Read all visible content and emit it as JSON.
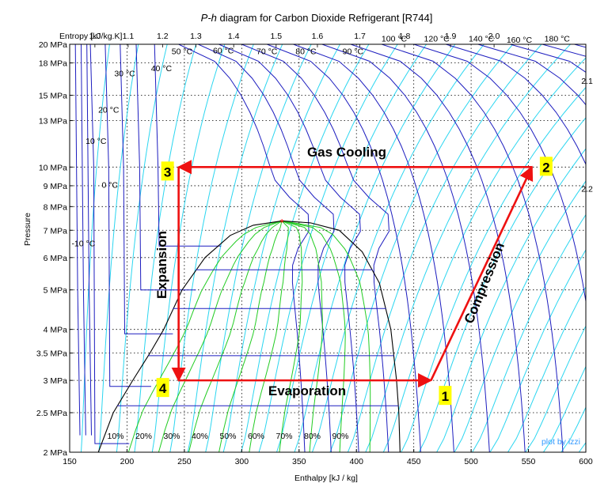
{
  "chart_data": {
    "type": "line",
    "title": "P-h diagram for Carbon Dioxide Refrigerant [R744]",
    "title_italic_part": "P-h",
    "title_rest": " diagram for Carbon Dioxide Refrigerant [R744]",
    "xlabel": "Enthalpy [kJ / kg]",
    "ylabel": "Pressure",
    "xlim": [
      150,
      600
    ],
    "ylim": [
      2,
      20
    ],
    "y_scale": "log",
    "grid": true,
    "x_ticks": [
      150,
      200,
      250,
      300,
      350,
      400,
      450,
      500,
      550,
      600
    ],
    "y_ticks": [
      {
        "value": 2,
        "label": "2 MPa"
      },
      {
        "value": 2.5,
        "label": "2.5 MPa"
      },
      {
        "value": 3,
        "label": "3 MPa"
      },
      {
        "value": 3.5,
        "label": "3.5 MPa"
      },
      {
        "value": 4,
        "label": "4 MPa"
      },
      {
        "value": 5,
        "label": "5 MPa"
      },
      {
        "value": 6,
        "label": "6 MPa"
      },
      {
        "value": 7,
        "label": "7 MPa"
      },
      {
        "value": 8,
        "label": "8 MPa"
      },
      {
        "value": 9,
        "label": "9 MPa"
      },
      {
        "value": 10,
        "label": "10 MPa"
      },
      {
        "value": 13,
        "label": "13 MPa"
      },
      {
        "value": 15,
        "label": "15 MPa"
      },
      {
        "value": 18,
        "label": "18 MPa"
      },
      {
        "value": 20,
        "label": "20 MPa"
      }
    ],
    "entropy_axis_label": "Entropy [kJ/kg.K]",
    "entropy_ticks": [
      {
        "value": "1.0",
        "h": 172
      },
      {
        "value": "1.1",
        "h": 201
      },
      {
        "value": "1.2",
        "h": 231
      },
      {
        "value": "1.3",
        "h": 260
      },
      {
        "value": "1.4",
        "h": 293
      },
      {
        "value": "1.5",
        "h": 330
      },
      {
        "value": "1.6",
        "h": 366
      },
      {
        "value": "1.7",
        "h": 403
      },
      {
        "value": "1.8",
        "h": 442
      },
      {
        "value": "1.9",
        "h": 482
      },
      {
        "value": "2.0",
        "h": 520
      }
    ],
    "isotherm_labels": [
      {
        "text": "-10 °C",
        "h": 162,
        "p": 6.4
      },
      {
        "text": "0 °C",
        "h": 185,
        "p": 8.9
      },
      {
        "text": "10 °C",
        "h": 173,
        "p": 11.4
      },
      {
        "text": "20 °C",
        "h": 184,
        "p": 13.6
      },
      {
        "text": "30 °C",
        "h": 198,
        "p": 16.7
      },
      {
        "text": "40 °C",
        "h": 230,
        "p": 17.2
      },
      {
        "text": "50 °C",
        "h": 248,
        "p": 18.9
      },
      {
        "text": "60 °C",
        "h": 284,
        "p": 19.0
      },
      {
        "text": "70 °C",
        "h": 322,
        "p": 18.9
      },
      {
        "text": "80 °C",
        "h": 356,
        "p": 18.9
      },
      {
        "text": "90 °C",
        "h": 397,
        "p": 18.9
      },
      {
        "text": "100 °C",
        "h": 433,
        "p": 20.3
      },
      {
        "text": "120 °C",
        "h": 470,
        "p": 20.3
      },
      {
        "text": "140 °C",
        "h": 509,
        "p": 20.3
      },
      {
        "text": "160 °C",
        "h": 542,
        "p": 20.2
      },
      {
        "text": "180 °C",
        "h": 575,
        "p": 20.3
      }
    ],
    "isentrope_edge_labels": [
      {
        "text": "2.1",
        "h": 596,
        "p": 16.0
      },
      {
        "text": "2.2",
        "h": 596,
        "p": 8.7
      }
    ],
    "quality_labels": [
      "10%",
      "20%",
      "30%",
      "40%",
      "50%",
      "60%",
      "70%",
      "80%",
      "90%"
    ],
    "critical_point": {
      "h": 335,
      "p": 7.38
    },
    "saturation_dome": {
      "liquid": [
        [
          175,
          2.0
        ],
        [
          188,
          2.5
        ],
        [
          205,
          3.0
        ],
        [
          220,
          3.5
        ],
        [
          232,
          4.0
        ],
        [
          248,
          5.0
        ],
        [
          268,
          6.0
        ],
        [
          290,
          6.8
        ],
        [
          310,
          7.2
        ],
        [
          335,
          7.38
        ]
      ],
      "vapor": [
        [
          335,
          7.38
        ],
        [
          360,
          7.3
        ],
        [
          385,
          7.0
        ],
        [
          405,
          6.2
        ],
        [
          420,
          5.2
        ],
        [
          430,
          4.0
        ],
        [
          435,
          3.0
        ],
        [
          437,
          2.5
        ],
        [
          438,
          2.0
        ]
      ]
    },
    "isobars_in_dome": [
      2.6,
      3.45,
      4.5,
      5.6
    ],
    "cycle": {
      "states": [
        {
          "label": "1",
          "h": 465,
          "p": 3.0
        },
        {
          "label": "2",
          "h": 553,
          "p": 10.0
        },
        {
          "label": "3",
          "h": 245,
          "p": 10.0
        },
        {
          "label": "4",
          "h": 245,
          "p": 3.0
        }
      ],
      "processes": [
        {
          "label": "Compression",
          "from": "1",
          "to": "2"
        },
        {
          "label": "Gas Cooling",
          "from": "2",
          "to": "3"
        },
        {
          "label": "Expansion",
          "from": "3",
          "to": "4"
        },
        {
          "label": "Evaporation",
          "from": "4",
          "to": "1"
        }
      ]
    },
    "colors": {
      "isotherm": "#1d1dbf",
      "isentrope": "#2bd6f0",
      "quality": "#22cc22",
      "dome": "#000000",
      "cycle": "#ee1111",
      "state_bg": "#ffff00",
      "credit": "#3399ff",
      "critical": "#ff0000",
      "grid": "#000000"
    },
    "credit": "plot by izzi"
  }
}
